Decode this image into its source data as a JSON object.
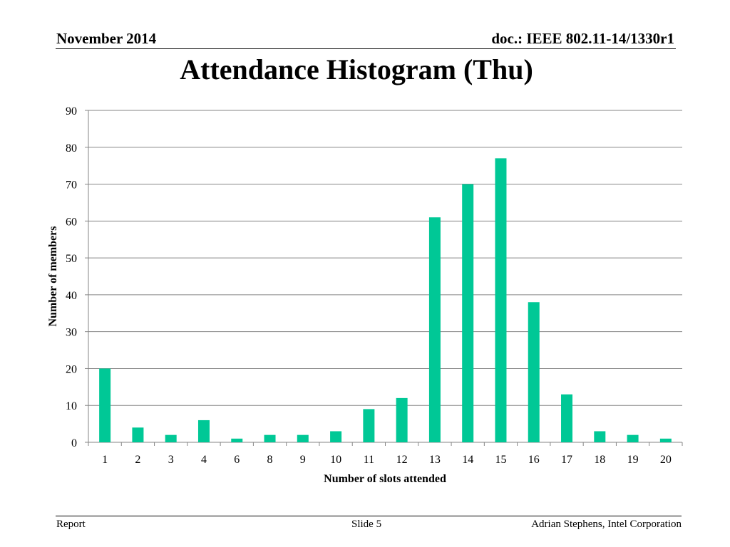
{
  "header": {
    "date": "November 2014",
    "doc": "doc.: IEEE 802.11-14/1330r1"
  },
  "footer": {
    "left": "Report",
    "slide": "Slide 5",
    "author": "Adrian Stephens, Intel Corporation"
  },
  "chart_data": {
    "type": "bar",
    "title": "Attendance Histogram (Thu)",
    "xlabel": "Number of slots attended",
    "ylabel": "Number of members",
    "categories": [
      "1",
      "2",
      "3",
      "4",
      "6",
      "8",
      "9",
      "10",
      "11",
      "12",
      "13",
      "14",
      "15",
      "16",
      "17",
      "18",
      "19",
      "20"
    ],
    "values": [
      20,
      4,
      2,
      6,
      1,
      2,
      2,
      3,
      9,
      12,
      61,
      70,
      77,
      38,
      13,
      3,
      2,
      1
    ],
    "ylim": [
      0,
      90
    ],
    "yticks": [
      0,
      10,
      20,
      30,
      40,
      50,
      60,
      70,
      80,
      90
    ],
    "grid": true,
    "bar_color": "#00c896",
    "grid_color": "#868686"
  }
}
